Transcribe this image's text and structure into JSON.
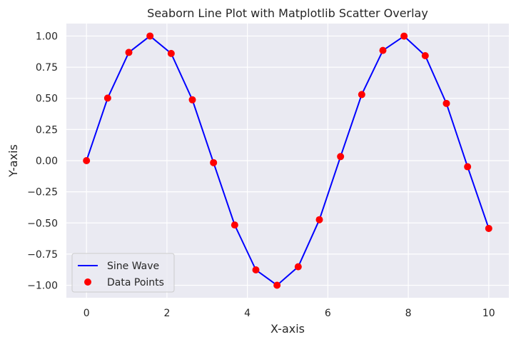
{
  "chart_data": {
    "type": "line",
    "title": "Seaborn Line Plot with Matplotlib Scatter Overlay",
    "xlabel": "X-axis",
    "ylabel": "Y-axis",
    "xlim": [
      -0.5,
      10.5
    ],
    "ylim": [
      -1.1,
      1.1
    ],
    "xticks": [
      0,
      2,
      4,
      6,
      8,
      10
    ],
    "xtick_labels": [
      "0",
      "2",
      "4",
      "6",
      "8",
      "10"
    ],
    "yticks": [
      1.0,
      0.75,
      0.5,
      0.25,
      0.0,
      -0.25,
      -0.5,
      -0.75,
      -1.0
    ],
    "ytick_labels": [
      "1.00",
      "0.75",
      "0.50",
      "0.25",
      "0.00",
      "−0.25",
      "−0.50",
      "−0.75",
      "−1.00"
    ],
    "grid": true,
    "legend_position": "lower-left",
    "x": [
      0.0,
      0.5263,
      1.0526,
      1.5789,
      2.1053,
      2.6316,
      3.1579,
      3.6842,
      4.2105,
      4.7368,
      5.2632,
      5.7895,
      6.3158,
      6.8421,
      7.3684,
      7.8947,
      8.4211,
      8.9474,
      9.4737,
      10.0
    ],
    "series": [
      {
        "name": "Sine Wave",
        "kind": "line",
        "color": "#0000ff",
        "values": [
          0.0,
          0.502,
          0.8685,
          1.0,
          0.8602,
          0.4881,
          -0.0163,
          -0.5163,
          -0.8766,
          -0.9997,
          -0.8514,
          -0.4738,
          0.0326,
          0.5304,
          0.8844,
          0.9992,
          0.8422,
          0.4593,
          -0.0489,
          -0.544
        ]
      },
      {
        "name": "Data Points",
        "kind": "scatter",
        "color": "#ff0000",
        "values": [
          0.0,
          0.502,
          0.8685,
          1.0,
          0.8602,
          0.4881,
          -0.0163,
          -0.5163,
          -0.8766,
          -0.9997,
          -0.8514,
          -0.4738,
          0.0326,
          0.5304,
          0.8844,
          0.9992,
          0.8422,
          0.4593,
          -0.0489,
          -0.544
        ]
      }
    ]
  },
  "colors": {
    "plot_background": "#eaeaf2",
    "grid": "#ffffff",
    "text": "#262626"
  }
}
